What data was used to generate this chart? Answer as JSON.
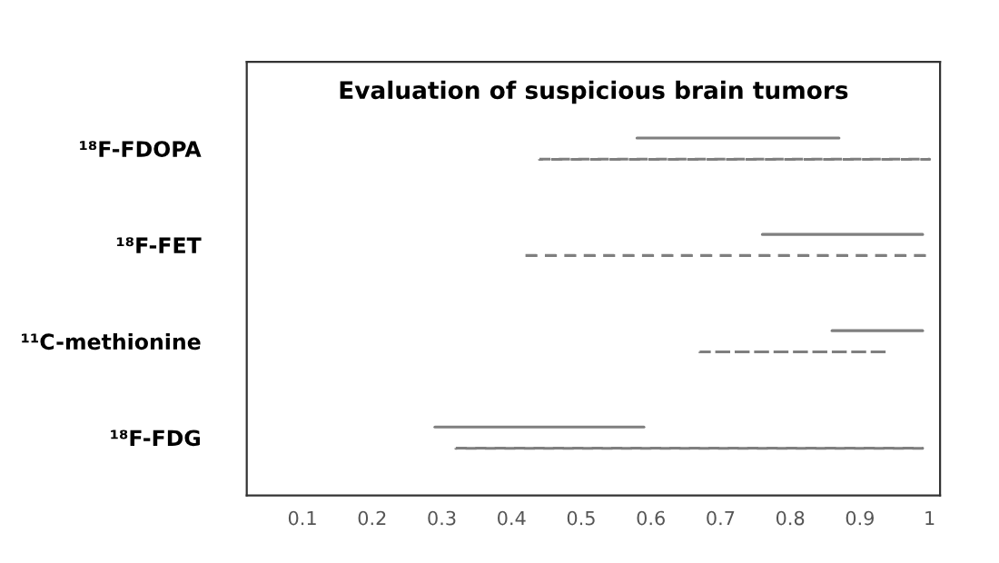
{
  "chart_data": {
    "type": "bar",
    "orientation": "horizontal",
    "title": "Evaluation of suspicious brain tumors",
    "categories": [
      "¹⁸F-FDOPA",
      "¹⁸F-FET",
      "¹¹C-methionine",
      "¹⁸F-FDG"
    ],
    "series": [
      {
        "color": "#7f7f7f",
        "line_style": "solid",
        "base": [
          0.58,
          0.76,
          0.86,
          0.29
        ],
        "values": [
          0.29,
          0.23,
          0.13,
          0.3
        ]
      },
      {
        "color": "#7f7f7f",
        "line_style": "dashed",
        "base": [
          0.44,
          0.42,
          0.67,
          0.32
        ],
        "values": [
          0.56,
          0.58,
          0.27,
          0.67
        ]
      }
    ],
    "xlim": [
      0.02,
      1.015
    ],
    "xticks": [
      0.1,
      0.2,
      0.3,
      0.4,
      0.5,
      0.6,
      0.7,
      0.8,
      0.9,
      1
    ],
    "grid": false,
    "legend": false
  }
}
